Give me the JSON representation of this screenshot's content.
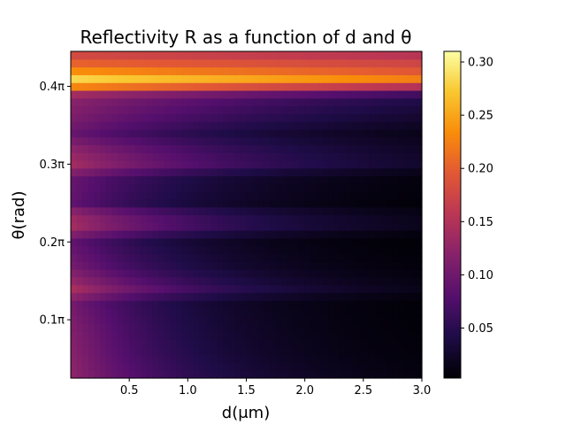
{
  "chart_data": {
    "type": "heatmap",
    "title": "Reflectivity R as a function of d and θ",
    "xlabel": "d(μm)",
    "ylabel": "θ(rad)",
    "colormap": "inferno",
    "x_range": [
      0.0,
      3.0
    ],
    "y_range_pi": [
      0.025,
      0.445
    ],
    "x_ticks": [
      {
        "value": 0.5,
        "label": "0.5"
      },
      {
        "value": 1.0,
        "label": "1.0"
      },
      {
        "value": 1.5,
        "label": "1.5"
      },
      {
        "value": 2.0,
        "label": "2.0"
      },
      {
        "value": 2.5,
        "label": "2.5"
      },
      {
        "value": 3.0,
        "label": "3.0"
      }
    ],
    "y_ticks": [
      {
        "value_pi": 0.1,
        "label": "0.1π"
      },
      {
        "value_pi": 0.2,
        "label": "0.2π"
      },
      {
        "value_pi": 0.3,
        "label": "0.3π"
      },
      {
        "value_pi": 0.4,
        "label": "0.4π"
      }
    ],
    "colorbar": {
      "min": 0.003,
      "max": 0.31,
      "ticks": [
        {
          "value": 0.05,
          "label": "0.05"
        },
        {
          "value": 0.1,
          "label": "0.10"
        },
        {
          "value": 0.15,
          "label": "0.15"
        },
        {
          "value": 0.2,
          "label": "0.20"
        },
        {
          "value": 0.25,
          "label": "0.25"
        },
        {
          "value": 0.3,
          "label": "0.30"
        }
      ]
    },
    "grid": false,
    "grid_shape": {
      "cols": 60,
      "rows": 42
    },
    "row_profile": [
      {
        "theta_pi": 0.03,
        "r0": 0.125,
        "decay": 0.85
      },
      {
        "theta_pi": 0.06,
        "r0": 0.12,
        "decay": 0.95
      },
      {
        "theta_pi": 0.09,
        "r0": 0.115,
        "decay": 1.0
      },
      {
        "theta_pi": 0.12,
        "r0": 0.105,
        "decay": 1.0
      },
      {
        "theta_pi": 0.14,
        "r0": 0.145,
        "decay": 0.75
      },
      {
        "theta_pi": 0.15,
        "r0": 0.13,
        "decay": 0.8
      },
      {
        "theta_pi": 0.17,
        "r0": 0.105,
        "decay": 0.9
      },
      {
        "theta_pi": 0.2,
        "r0": 0.09,
        "decay": 1.0
      },
      {
        "theta_pi": 0.22,
        "r0": 0.14,
        "decay": 0.7
      },
      {
        "theta_pi": 0.235,
        "r0": 0.135,
        "decay": 0.7
      },
      {
        "theta_pi": 0.25,
        "r0": 0.09,
        "decay": 0.9
      },
      {
        "theta_pi": 0.28,
        "r0": 0.095,
        "decay": 0.8
      },
      {
        "theta_pi": 0.3,
        "r0": 0.14,
        "decay": 0.55
      },
      {
        "theta_pi": 0.315,
        "r0": 0.13,
        "decay": 0.55
      },
      {
        "theta_pi": 0.34,
        "r0": 0.095,
        "decay": 0.6
      },
      {
        "theta_pi": 0.36,
        "r0": 0.11,
        "decay": 0.45
      },
      {
        "theta_pi": 0.38,
        "r0": 0.12,
        "decay": 0.35
      },
      {
        "theta_pi": 0.395,
        "r0": 0.15,
        "decay": 0.2
      },
      {
        "theta_pi": 0.405,
        "r0": 0.31,
        "decay": 0.08
      },
      {
        "theta_pi": 0.415,
        "r0": 0.255,
        "decay": 0.08
      },
      {
        "theta_pi": 0.425,
        "r0": 0.215,
        "decay": 0.05
      },
      {
        "theta_pi": 0.44,
        "r0": 0.18,
        "decay": 0.05
      }
    ]
  }
}
